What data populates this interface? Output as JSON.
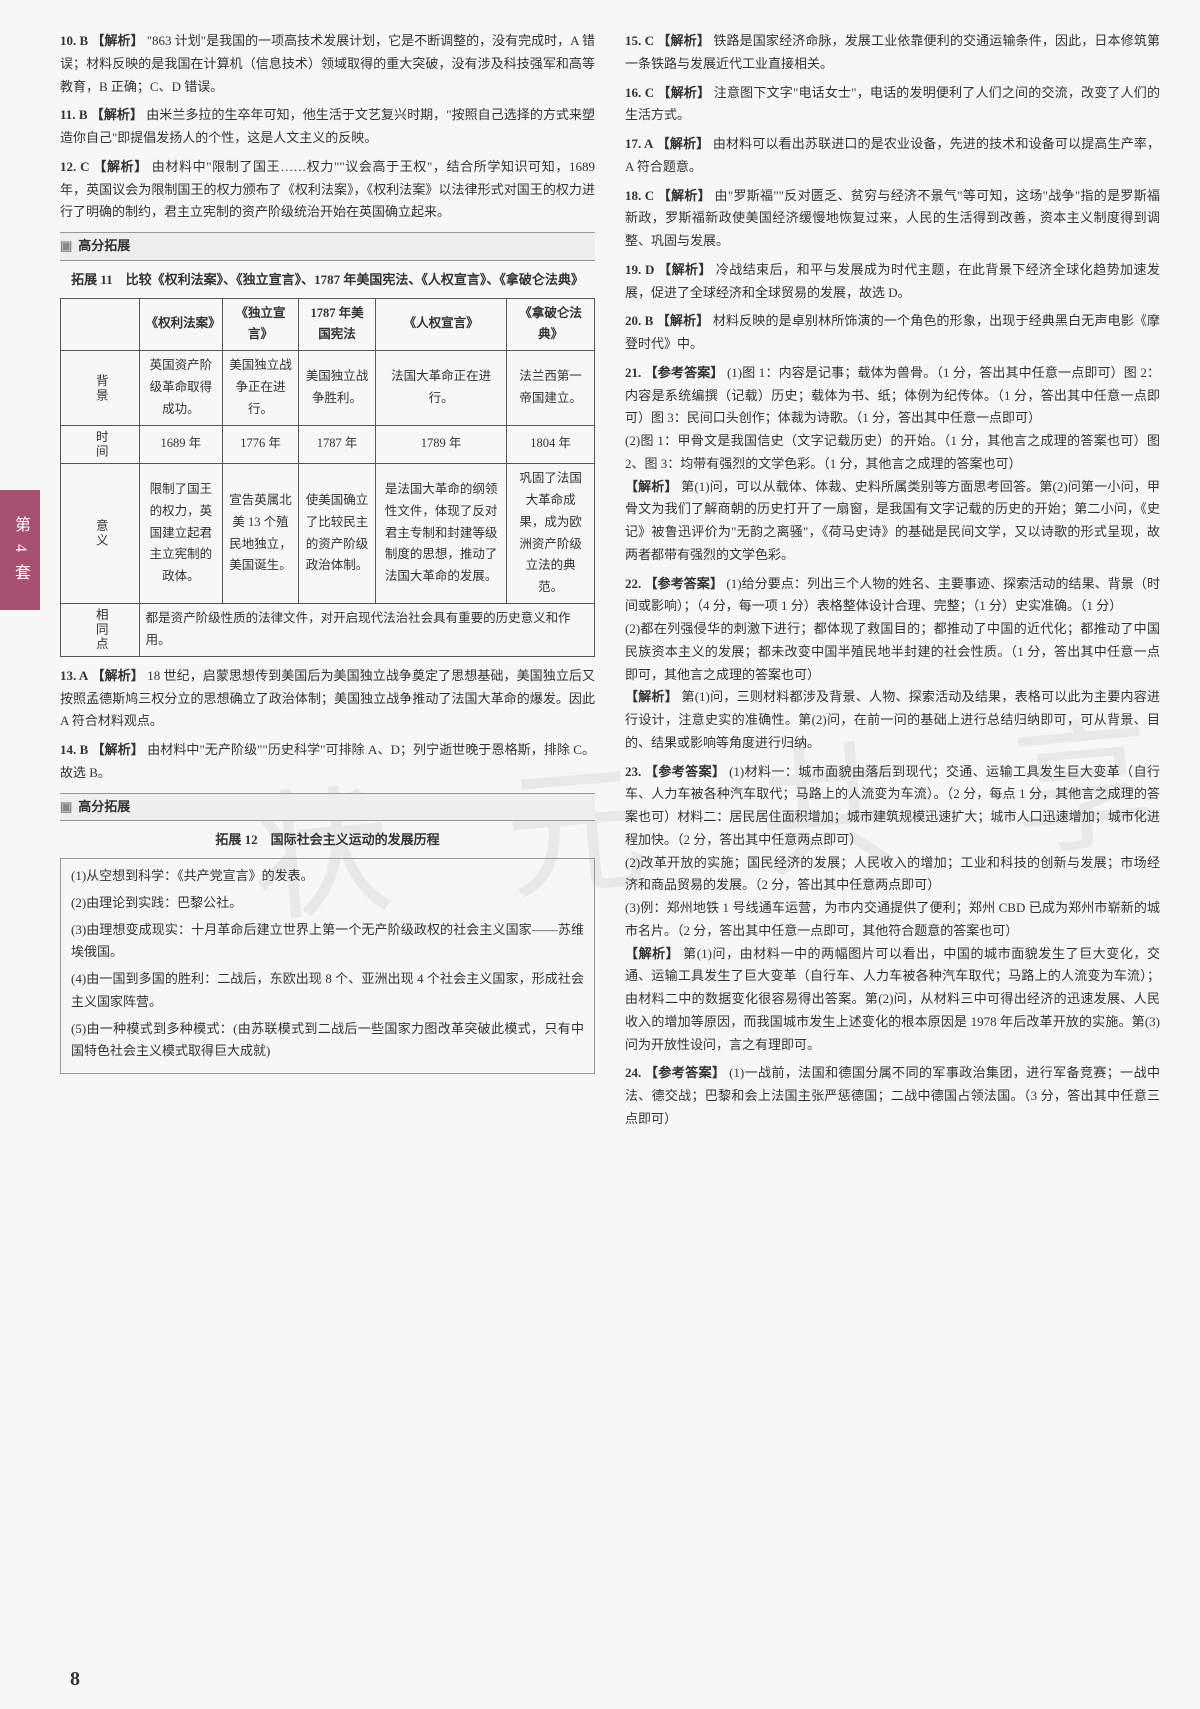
{
  "sideTab": "第 4 套",
  "pageNumber": "8",
  "watermark": "状 元 共 享",
  "left": {
    "q10": {
      "num": "10. B",
      "tag": "【解析】",
      "text": "\"863 计划\"是我国的一项高技术发展计划，它是不断调整的，没有完成时，A 错误；材料反映的是我国在计算机（信息技术）领域取得的重大突破，没有涉及科技强军和高等教育，B 正确；C、D 错误。"
    },
    "q11": {
      "num": "11. B",
      "tag": "【解析】",
      "text": "由米兰多拉的生卒年可知，他生活于文艺复兴时期，\"按照自己选择的方式来塑造你自己\"即提倡发扬人的个性，这是人文主义的反映。"
    },
    "q12": {
      "num": "12. C",
      "tag": "【解析】",
      "text": "由材料中\"限制了国王……权力\"\"议会高于王权\"，结合所学知识可知，1689 年，英国议会为限制国王的权力颁布了《权利法案》，《权利法案》以法律形式对国王的权力进行了明确的制约，君主立宪制的资产阶级统治开始在英国确立起来。"
    },
    "section1": "高分拓展",
    "exp11Title": "拓展 11　比较《权利法案》、《独立宣言》、1787 年美国宪法、《人权宣言》、《拿破仑法典》",
    "table": {
      "headers": [
        "",
        "《权利法案》",
        "《独立宣言》",
        "1787 年美国宪法",
        "《人权宣言》",
        "《拿破仑法典》"
      ],
      "rows": [
        {
          "h": "背景",
          "cells": [
            "英国资产阶级革命取得成功。",
            "美国独立战争正在进行。",
            "美国独立战争胜利。",
            "法国大革命正在进行。",
            "法兰西第一帝国建立。"
          ]
        },
        {
          "h": "时间",
          "cells": [
            "1689 年",
            "1776 年",
            "1787 年",
            "1789 年",
            "1804 年"
          ]
        },
        {
          "h": "意义",
          "cells": [
            "限制了国王的权力，英国建立起君主立宪制的政体。",
            "宣告英属北美 13 个殖民地独立，美国诞生。",
            "使美国确立了比较民主的资产阶级政治体制。",
            "是法国大革命的纲领性文件，体现了反对君主专制和封建等级制度的思想，推动了法国大革命的发展。",
            "巩固了法国大革命成果，成为欧洲资产阶级立法的典范。"
          ]
        },
        {
          "h": "相同点",
          "merged": "都是资产阶级性质的法律文件，对开启现代法治社会具有重要的历史意义和作用。"
        }
      ]
    },
    "q13": {
      "num": "13. A",
      "tag": "【解析】",
      "text": "18 世纪，启蒙思想传到美国后为美国独立战争奠定了思想基础，美国独立后又按照孟德斯鸠三权分立的思想确立了政治体制；美国独立战争推动了法国大革命的爆发。因此 A 符合材料观点。"
    },
    "q14": {
      "num": "14. B",
      "tag": "【解析】",
      "text": "由材料中\"无产阶级\"\"历史科学\"可排除 A、D；列宁逝世晚于恩格斯，排除 C。故选 B。"
    },
    "section2": "高分拓展",
    "exp12Title": "拓展 12　国际社会主义运动的发展历程",
    "listItems": [
      "(1)从空想到科学：《共产党宣言》的发表。",
      "(2)由理论到实践：巴黎公社。",
      "(3)由理想变成现实：十月革命后建立世界上第一个无产阶级政权的社会主义国家——苏维埃俄国。",
      "(4)由一国到多国的胜利：二战后，东欧出现 8 个、亚洲出现 4 个社会主义国家，形成社会主义国家阵营。",
      "(5)由一种模式到多种模式：(由苏联模式到二战后一些国家力图改革突破此模式，只有中国特色社会主义模式取得巨大成就)"
    ]
  },
  "right": {
    "q15": {
      "num": "15. C",
      "tag": "【解析】",
      "text": "铁路是国家经济命脉，发展工业依靠便利的交通运输条件，因此，日本修筑第一条铁路与发展近代工业直接相关。"
    },
    "q16": {
      "num": "16. C",
      "tag": "【解析】",
      "text": "注意图下文字\"电话女士\"，电话的发明便利了人们之间的交流，改变了人们的生活方式。"
    },
    "q17": {
      "num": "17. A",
      "tag": "【解析】",
      "text": "由材料可以看出苏联进口的是农业设备，先进的技术和设备可以提高生产率，A 符合题意。"
    },
    "q18": {
      "num": "18. C",
      "tag": "【解析】",
      "text": "由\"罗斯福\"\"反对匮乏、贫穷与经济不景气\"等可知，这场\"战争\"指的是罗斯福新政，罗斯福新政使美国经济缓慢地恢复过来，人民的生活得到改善，资本主义制度得到调整、巩固与发展。"
    },
    "q19": {
      "num": "19. D",
      "tag": "【解析】",
      "text": "冷战结束后，和平与发展成为时代主题，在此背景下经济全球化趋势加速发展，促进了全球经济和全球贸易的发展，故选 D。"
    },
    "q20": {
      "num": "20. B",
      "tag": "【解析】",
      "text": "材料反映的是卓别林所饰演的一个角色的形象，出现于经典黑白无声电影《摩登时代》中。"
    },
    "q21": {
      "num": "21.",
      "tag": "【参考答案】",
      "p1": "(1)图 1：内容是记事；载体为兽骨。（1 分，答出其中任意一点即可）图 2：内容是系统编撰（记载）历史；载体为书、纸；体例为纪传体。（1 分，答出其中任意一点即可）图 3：民间口头创作；体裁为诗歌。（1 分，答出其中任意一点即可）",
      "p2": "(2)图 1：甲骨文是我国信史（文字记载历史）的开始。（1 分，其他言之成理的答案也可）图 2、图 3：均带有强烈的文学色彩。（1 分，其他言之成理的答案也可）",
      "p3tag": "【解析】",
      "p3": "第(1)问，可以从载体、体裁、史料所属类别等方面思考回答。第(2)问第一小问，甲骨文为我们了解商朝的历史打开了一扇窗，是我国有文字记载的历史的开始；第二小问，《史记》被鲁迅评价为\"无韵之离骚\"，《荷马史诗》的基础是民间文学，又以诗歌的形式呈现，故两者都带有强烈的文学色彩。"
    },
    "q22": {
      "num": "22.",
      "tag": "【参考答案】",
      "p1": "(1)给分要点：列出三个人物的姓名、主要事迹、探索活动的结果、背景（时间或影响）；（4 分，每一项 1 分）表格整体设计合理、完整；（1 分）史实准确。（1 分）",
      "p2": "(2)都在列强侵华的刺激下进行；都体现了救国目的；都推动了中国的近代化；都推动了中国民族资本主义的发展；都未改变中国半殖民地半封建的社会性质。（1 分，答出其中任意一点即可，其他言之成理的答案也可）",
      "p3tag": "【解析】",
      "p3": "第(1)问，三则材料都涉及背景、人物、探索活动及结果，表格可以此为主要内容进行设计，注意史实的准确性。第(2)问，在前一问的基础上进行总结归纳即可，可从背景、目的、结果或影响等角度进行归纳。"
    },
    "q23": {
      "num": "23.",
      "tag": "【参考答案】",
      "p1": "(1)材料一：城市面貌由落后到现代；交通、运输工具发生巨大变革（自行车、人力车被各种汽车取代；马路上的人流变为车流）。（2 分，每点 1 分，其他言之成理的答案也可）材料二：居民居住面积增加；城市建筑规模迅速扩大；城市人口迅速增加；城市化进程加快。（2 分，答出其中任意两点即可）",
      "p2": "(2)改革开放的实施；国民经济的发展；人民收入的增加；工业和科技的创新与发展；市场经济和商品贸易的发展。（2 分，答出其中任意两点即可）",
      "p3": "(3)例：郑州地铁 1 号线通车运营，为市内交通提供了便利；郑州 CBD 已成为郑州市崭新的城市名片。（2 分，答出其中任意一点即可，其他符合题意的答案也可）",
      "p4tag": "【解析】",
      "p4": "第(1)问，由材料一中的两幅图片可以看出，中国的城市面貌发生了巨大变化，交通、运输工具发生了巨大变革（自行车、人力车被各种汽车取代；马路上的人流变为车流）；由材料二中的数据变化很容易得出答案。第(2)问，从材料三中可得出经济的迅速发展、人民收入的增加等原因，而我国城市发生上述变化的根本原因是 1978 年后改革开放的实施。第(3)问为开放性设问，言之有理即可。"
    },
    "q24": {
      "num": "24.",
      "tag": "【参考答案】",
      "p1": "(1)一战前，法国和德国分属不同的军事政治集团，进行军备竞赛；一战中法、德交战；巴黎和会上法国主张严惩德国；二战中德国占领法国。（3 分，答出其中任意三点即可）"
    }
  }
}
